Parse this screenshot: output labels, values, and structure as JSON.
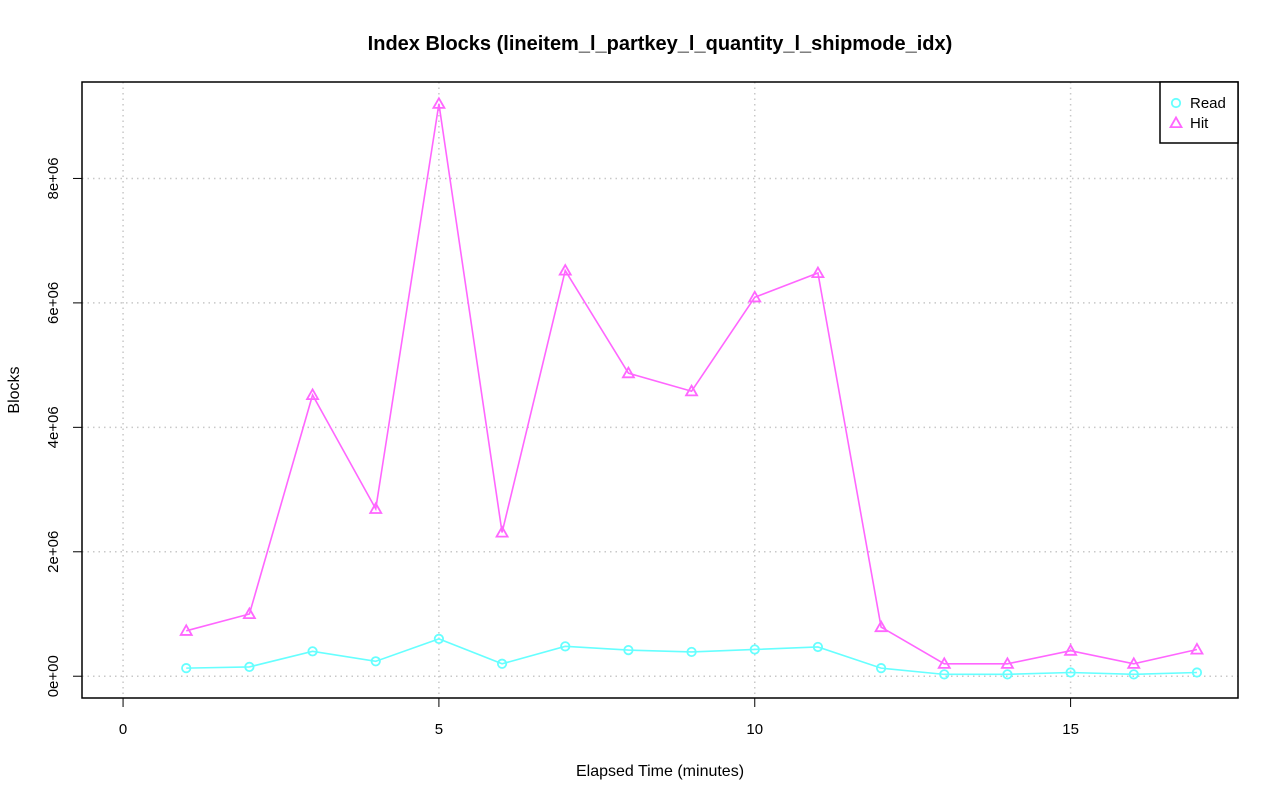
{
  "chart_data": {
    "type": "line",
    "title": "Index Blocks (lineitem_l_partkey_l_quantity_l_shipmode_idx)",
    "xlabel": "Elapsed Time (minutes)",
    "ylabel": "Blocks",
    "xlim": [
      -0.65,
      17.65
    ],
    "ylim": [
      -350000,
      9550000
    ],
    "x_ticks": [
      0,
      5,
      10,
      15
    ],
    "x_tick_labels": [
      "0",
      "5",
      "10",
      "15"
    ],
    "y_ticks": [
      0,
      2000000,
      4000000,
      6000000,
      8000000
    ],
    "y_tick_labels": [
      "0e+00",
      "2e+06",
      "4e+06",
      "6e+06",
      "8e+06"
    ],
    "grid": true,
    "legend_position": "top-right",
    "x": [
      1,
      2,
      3,
      4,
      5,
      6,
      7,
      8,
      9,
      10,
      11,
      12,
      13,
      14,
      15,
      16,
      17
    ],
    "series": [
      {
        "name": "Read",
        "color": "#66ffff",
        "marker": "circle",
        "values": [
          130000,
          150000,
          400000,
          240000,
          600000,
          200000,
          480000,
          420000,
          390000,
          430000,
          470000,
          130000,
          30000,
          30000,
          60000,
          30000,
          60000
        ]
      },
      {
        "name": "Hit",
        "color": "#ff66ff",
        "marker": "triangle",
        "values": [
          730000,
          1000000,
          4520000,
          2690000,
          9200000,
          2310000,
          6520000,
          4870000,
          4580000,
          6090000,
          6480000,
          790000,
          200000,
          200000,
          410000,
          200000,
          430000
        ]
      }
    ]
  }
}
